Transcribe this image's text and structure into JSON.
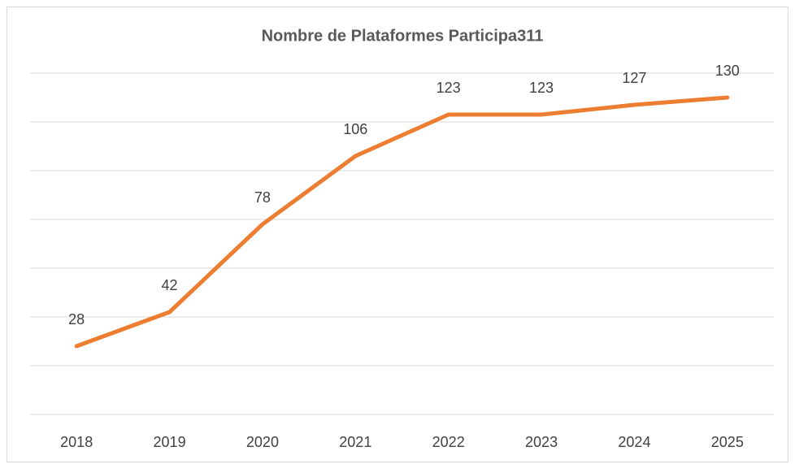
{
  "chart_data": {
    "type": "line",
    "title": "Nombre de Plataformes Participa311",
    "categories": [
      "2018",
      "2019",
      "2020",
      "2021",
      "2022",
      "2023",
      "2024",
      "2025"
    ],
    "series": [
      {
        "name": "Plataformes",
        "color": "#ed7d31",
        "values": [
          28,
          42,
          78,
          106,
          123,
          123,
          127,
          130
        ]
      }
    ],
    "ylim": [
      0,
      140
    ],
    "yticks": [
      0,
      20,
      40,
      60,
      80,
      100,
      120,
      140
    ],
    "grid": true
  }
}
